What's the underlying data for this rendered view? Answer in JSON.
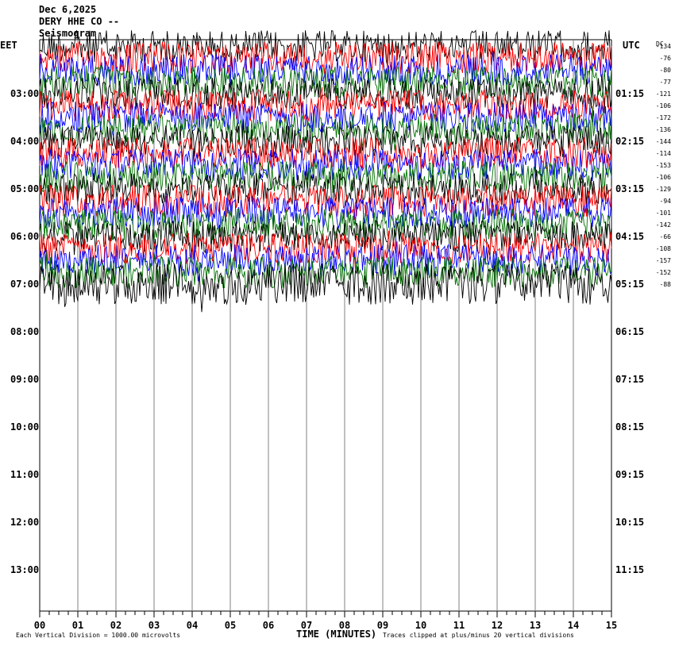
{
  "header": {
    "date": "Dec 6,2025",
    "station": "DERY HHE CO --",
    "subtitle": "Seismogram"
  },
  "left_tz": "EET",
  "right_tz": "UTC",
  "dc_label": "DC",
  "footer": {
    "scale_note": "Each Vertical Division = 1000.00 microvolts",
    "x_title": "TIME (MINUTES)",
    "clip_note": "Traces clipped at plus/minus 20 vertical divisions"
  },
  "colors": {
    "trace_cycle": [
      "#000000",
      "#ff0000",
      "#0000ff",
      "#007000"
    ],
    "grid": "#808080"
  },
  "chart_data": {
    "type": "line",
    "xlabel": "TIME (MINUTES)",
    "xlim": [
      0,
      15
    ],
    "x_ticks": [
      "00",
      "01",
      "02",
      "03",
      "04",
      "05",
      "06",
      "07",
      "08",
      "09",
      "10",
      "11",
      "12",
      "13",
      "14",
      "15"
    ],
    "left_hour_labels": [
      "03:00",
      "04:00",
      "05:00",
      "06:00",
      "07:00",
      "08:00",
      "09:00",
      "10:00",
      "11:00",
      "12:00",
      "13:00"
    ],
    "right_hour_labels": [
      "01:15",
      "02:15",
      "03:15",
      "04:15",
      "05:15",
      "06:15",
      "07:15",
      "08:15",
      "09:15",
      "10:15",
      "11:15"
    ],
    "dc_offsets": [
      "-134",
      "-76",
      "-80",
      "-77",
      "-121",
      "-106",
      "-172",
      "-136",
      "-144",
      "-114",
      "-153",
      "-106",
      "-129",
      "-94",
      "-101",
      "-142",
      "-66",
      "-108",
      "-157",
      "-152",
      "-88"
    ],
    "trace_count": 21,
    "traces_per_hour": 4
  }
}
